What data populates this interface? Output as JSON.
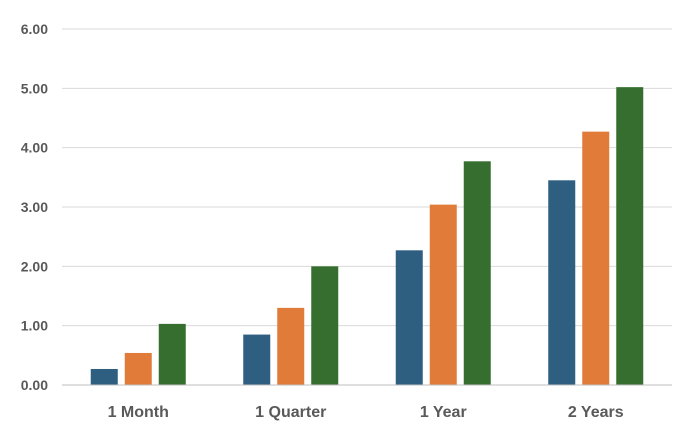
{
  "chart_data": {
    "type": "bar",
    "title": "",
    "xlabel": "",
    "ylabel": "",
    "categories": [
      "1 Month",
      "1 Quarter",
      "1 Year",
      "2 Years"
    ],
    "series": [
      {
        "color": "#2e5f80",
        "values": [
          0.27,
          0.85,
          2.27,
          3.45
        ]
      },
      {
        "color": "#e07b39",
        "values": [
          0.54,
          1.3,
          3.04,
          4.27
        ]
      },
      {
        "color": "#356e2f",
        "values": [
          1.03,
          2.0,
          3.77,
          5.02
        ]
      }
    ],
    "ylim": [
      0,
      6
    ],
    "yticks": [
      "0.00",
      "1.00",
      "2.00",
      "3.00",
      "4.00",
      "5.00",
      "6.00"
    ],
    "ytick_values": [
      0,
      1,
      2,
      3,
      4,
      5,
      6
    ],
    "grid": true,
    "legend": "none"
  }
}
